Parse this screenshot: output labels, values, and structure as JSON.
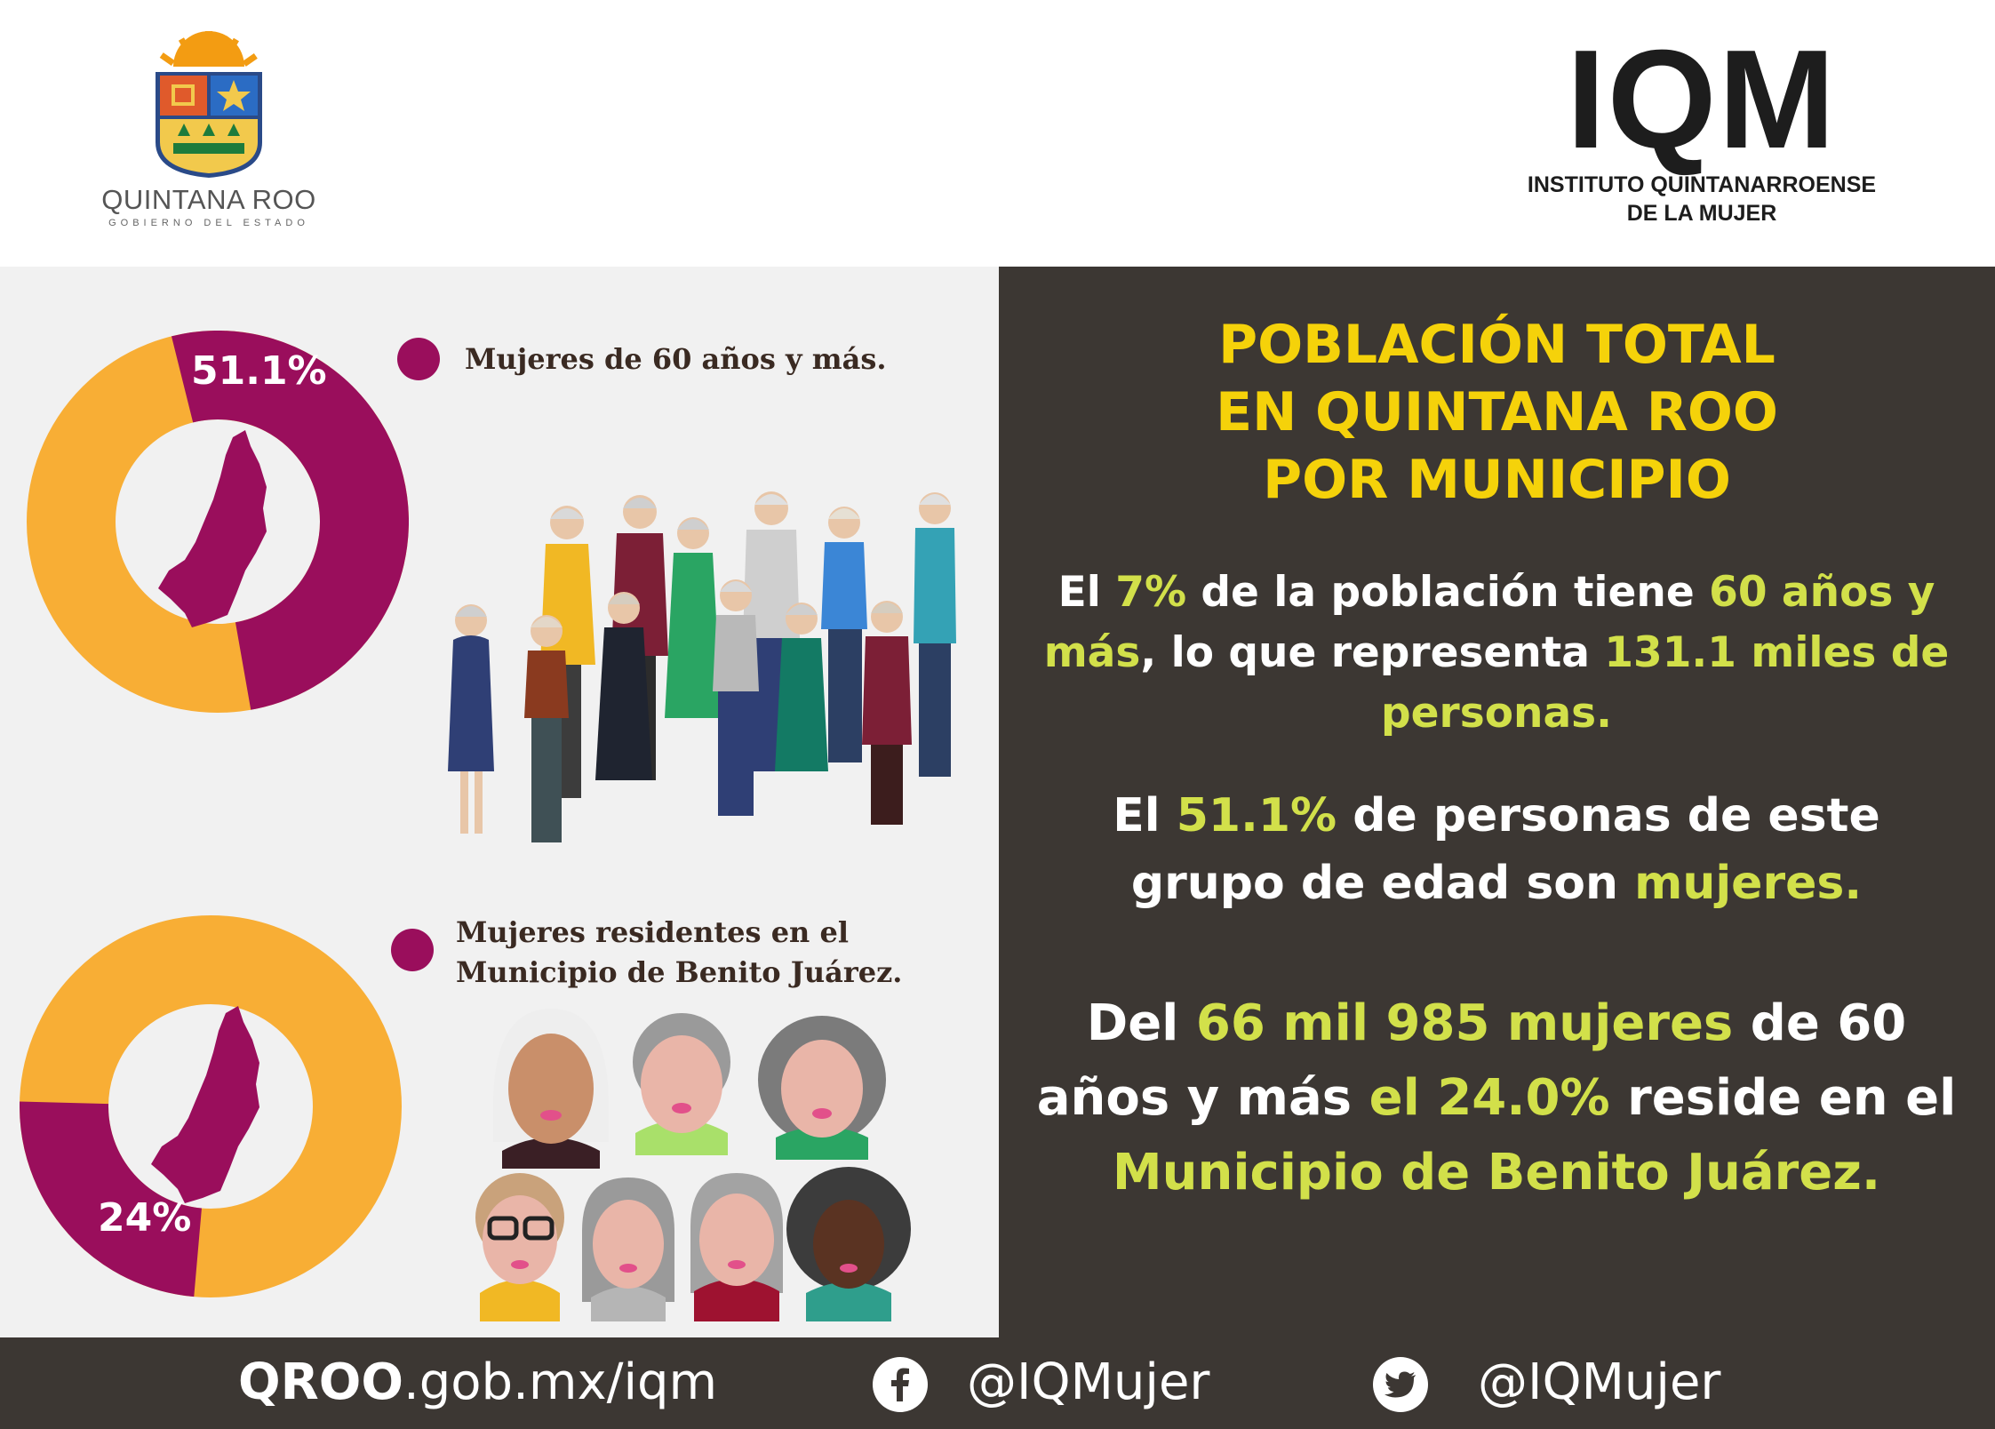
{
  "header": {
    "left_logo": {
      "name": "QUINTANA ROO",
      "subtitle": "GOBIERNO DEL ESTADO",
      "icon": "state-coat-of-arms"
    },
    "right_logo": {
      "acronym": "IQM",
      "line1": "INSTITUTO QUINTANARROENSE",
      "line2": "DE LA MUJER"
    }
  },
  "left_panel": {
    "donut_top": {
      "label": "51.1%",
      "value_percent": 51.1,
      "highlight_color": "#9a0e5c",
      "rest_color": "#f8ae35",
      "icon": "quintana-roo-map-icon"
    },
    "legend_top": "Mujeres de 60 años y más.",
    "illustration_top": "elderly-group-illustration",
    "donut_bottom": {
      "label": "24%",
      "value_percent": 24,
      "highlight_color": "#9a0e5c",
      "rest_color": "#f8ae35",
      "icon": "quintana-roo-map-icon"
    },
    "legend_bottom": "Mujeres residentes en el Municipio de Benito Juárez.",
    "illustration_bottom": "elderly-women-faces-illustration"
  },
  "right_panel": {
    "title_line1": "POBLACIÓN TOTAL",
    "title_line2": "EN QUINTANA ROO",
    "title_line3": "POR MUNICIPIO",
    "p1": {
      "t1": "El ",
      "h1": "7%",
      "t2": " de la población tiene ",
      "h2": "60 años y más",
      "t3": ", lo que representa ",
      "h3": "131.1 miles de personas."
    },
    "p2": {
      "t1": "El ",
      "h1": "51.1%",
      "t2": " de personas de este grupo de edad son ",
      "h2": "mujeres."
    },
    "p3": {
      "t1": "Del ",
      "h1": "66 mil 985 mujeres",
      "t2": " de 60 años y más ",
      "h2": "el 24.0%",
      "t3": " reside en el ",
      "h3": "Municipio de Benito Juárez."
    },
    "title_color": "#f5d20a",
    "highlight_color": "#d2e04a",
    "background": "#3c3733"
  },
  "footer": {
    "site_bold": "QROO",
    "site_rest": ".gob.mx/iqm",
    "facebook_handle": "@IQMujer",
    "twitter_handle": "@IQMujer",
    "facebook_icon": "facebook-icon",
    "twitter_icon": "twitter-icon"
  }
}
